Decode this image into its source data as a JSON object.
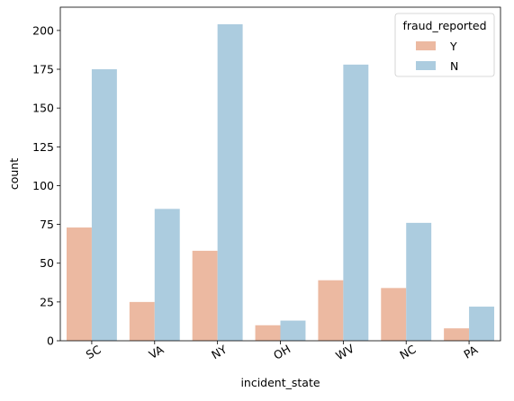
{
  "chart_data": {
    "type": "bar",
    "xlabel": "incident_state",
    "ylabel": "count",
    "categories": [
      "SC",
      "VA",
      "NY",
      "OH",
      "WV",
      "NC",
      "PA"
    ],
    "ylim": [
      0,
      215
    ],
    "yticks": [
      0,
      25,
      50,
      75,
      100,
      125,
      150,
      175,
      200
    ],
    "grid": false,
    "legend": {
      "title": "fraud_reported",
      "placement": "top-right"
    },
    "series": [
      {
        "name": "Y",
        "color": "#ecb9a1",
        "values": [
          73,
          25,
          58,
          10,
          39,
          34,
          8
        ]
      },
      {
        "name": "N",
        "color": "#acccdf",
        "values": [
          175,
          85,
          204,
          13,
          178,
          76,
          22
        ]
      }
    ]
  }
}
